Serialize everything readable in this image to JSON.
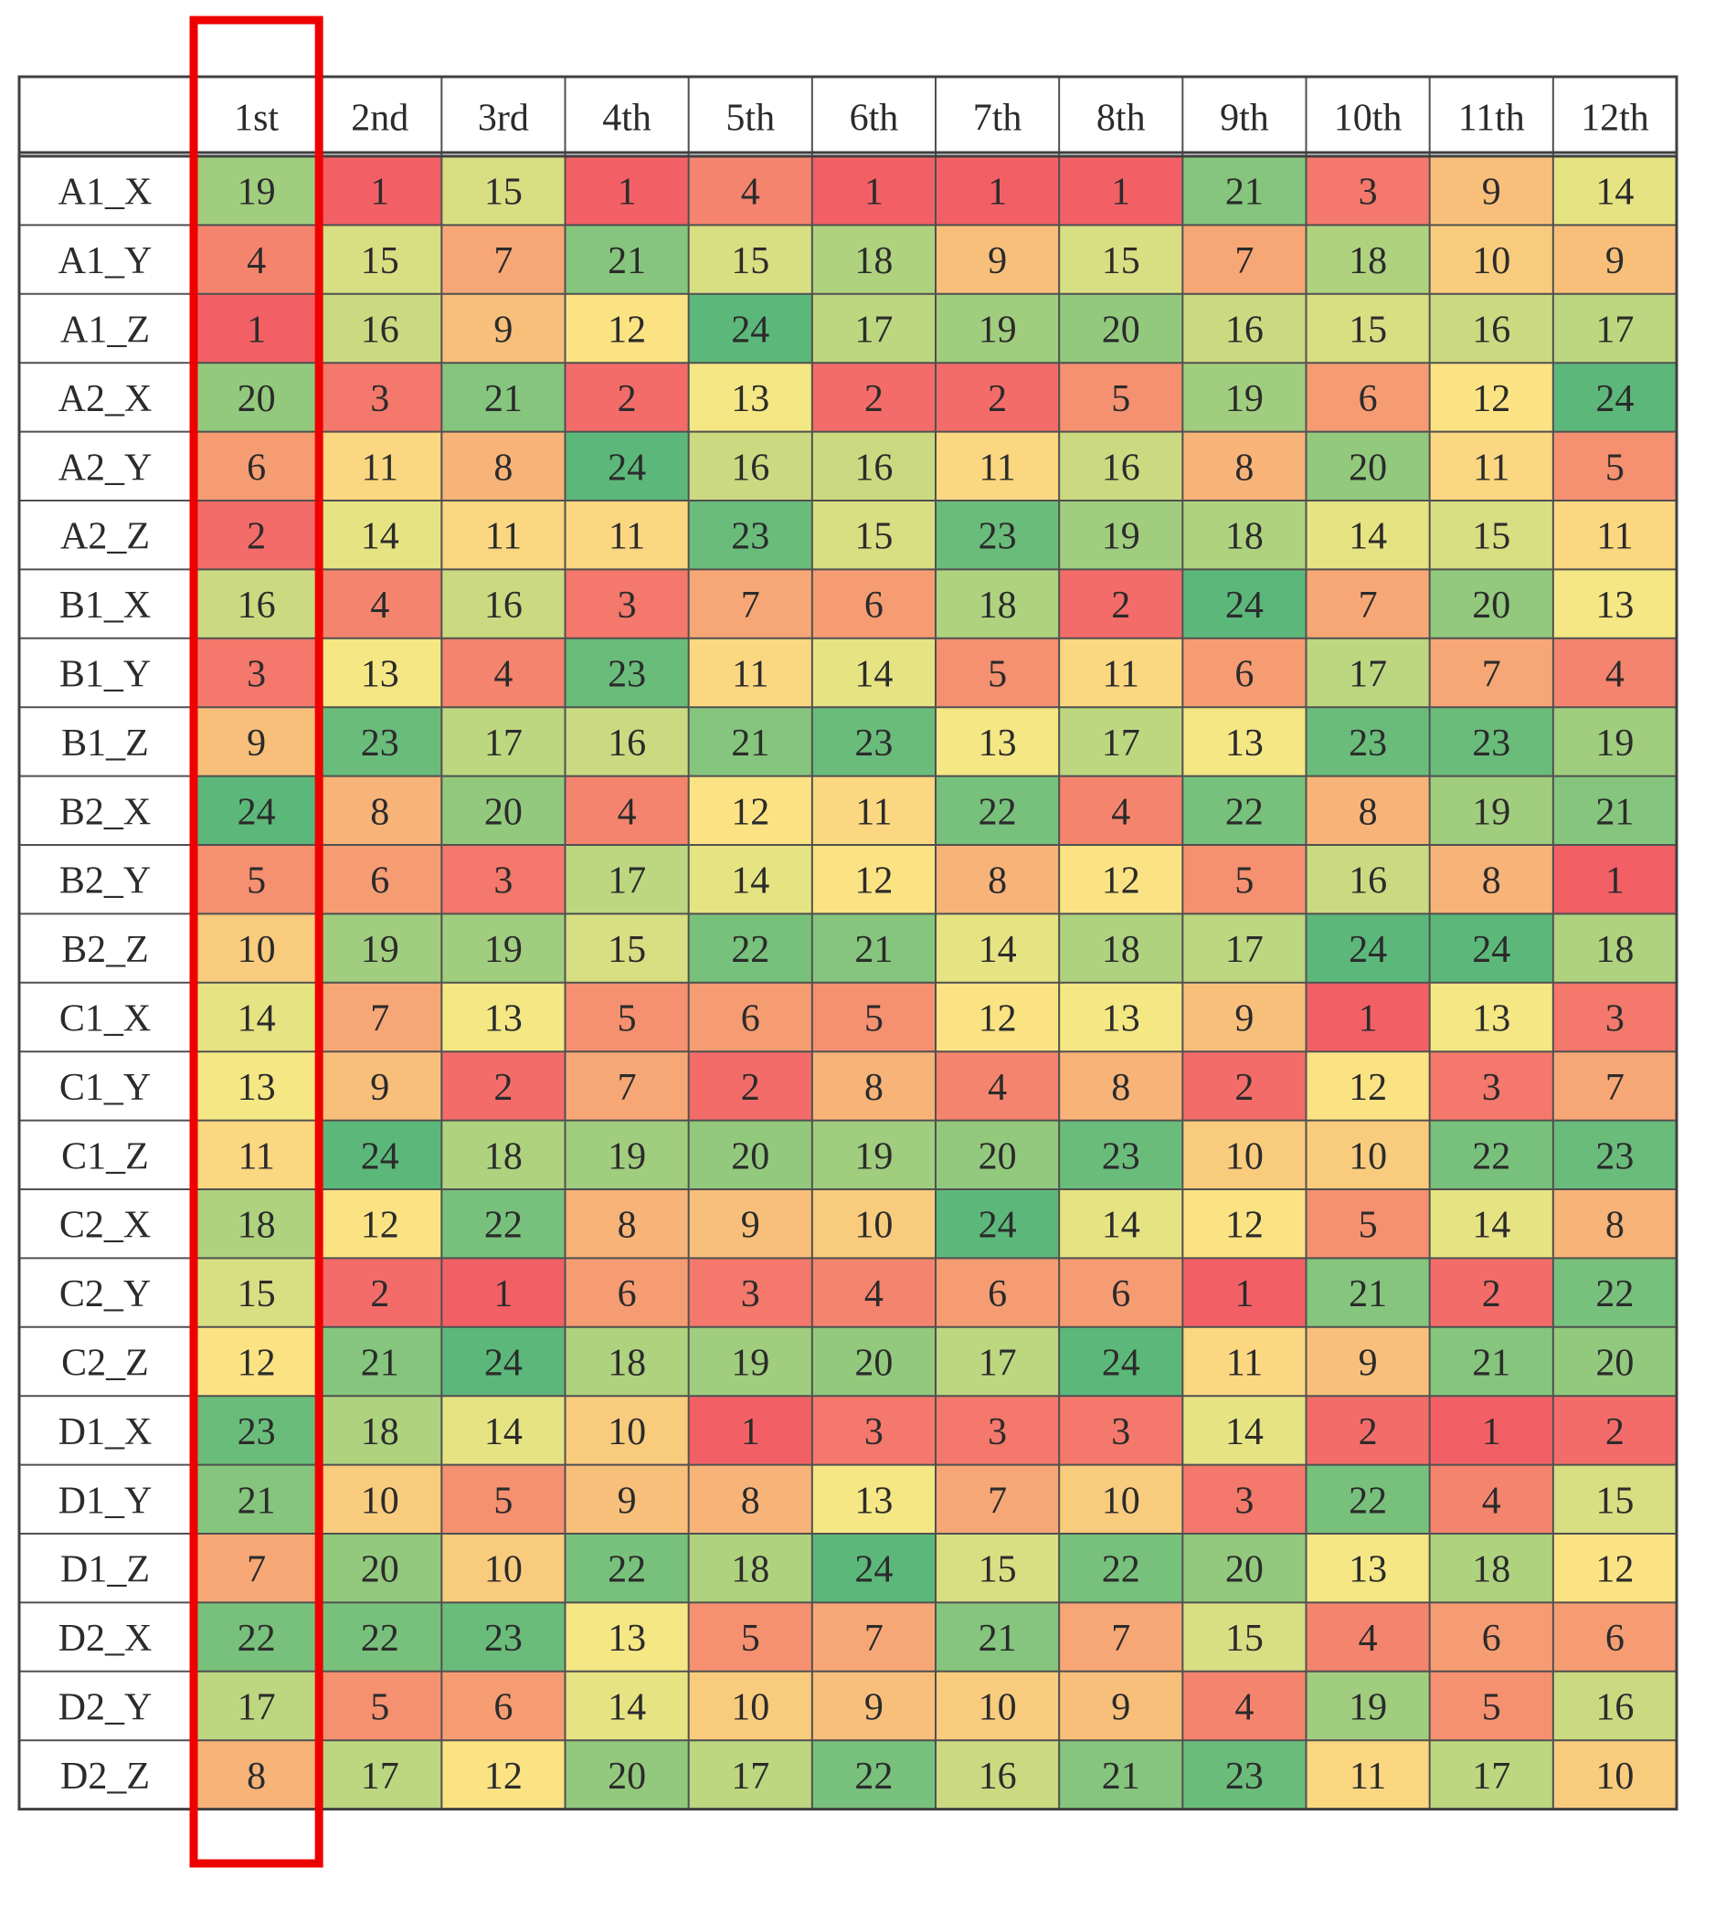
{
  "chart_data": {
    "type": "heatmap",
    "title": "",
    "xlabel": "",
    "ylabel": "",
    "columns": [
      "1st",
      "2nd",
      "3rd",
      "4th",
      "5th",
      "6th",
      "7th",
      "8th",
      "9th",
      "10th",
      "11th",
      "12th"
    ],
    "rows": [
      "A1_X",
      "A1_Y",
      "A1_Z",
      "A2_X",
      "A2_Y",
      "A2_Z",
      "B1_X",
      "B1_Y",
      "B1_Z",
      "B2_X",
      "B2_Y",
      "B2_Z",
      "C1_X",
      "C1_Y",
      "C1_Z",
      "C2_X",
      "C2_Y",
      "C2_Z",
      "D1_X",
      "D1_Y",
      "D1_Z",
      "D2_X",
      "D2_Y",
      "D2_Z"
    ],
    "values": [
      [
        19,
        1,
        15,
        1,
        4,
        1,
        1,
        1,
        21,
        3,
        9,
        14
      ],
      [
        4,
        15,
        7,
        21,
        15,
        18,
        9,
        15,
        7,
        18,
        10,
        9
      ],
      [
        1,
        16,
        9,
        12,
        24,
        17,
        19,
        20,
        16,
        15,
        16,
        17
      ],
      [
        20,
        3,
        21,
        2,
        13,
        2,
        2,
        5,
        19,
        6,
        12,
        24
      ],
      [
        6,
        11,
        8,
        24,
        16,
        16,
        11,
        16,
        8,
        20,
        11,
        5
      ],
      [
        2,
        14,
        11,
        11,
        23,
        15,
        23,
        19,
        18,
        14,
        15,
        11
      ],
      [
        16,
        4,
        16,
        3,
        7,
        6,
        18,
        2,
        24,
        7,
        20,
        13
      ],
      [
        3,
        13,
        4,
        23,
        11,
        14,
        5,
        11,
        6,
        17,
        7,
        4
      ],
      [
        9,
        23,
        17,
        16,
        21,
        23,
        13,
        17,
        13,
        23,
        23,
        19
      ],
      [
        24,
        8,
        20,
        4,
        12,
        11,
        22,
        4,
        22,
        8,
        19,
        21
      ],
      [
        5,
        6,
        3,
        17,
        14,
        12,
        8,
        12,
        5,
        16,
        8,
        1
      ],
      [
        10,
        19,
        19,
        15,
        22,
        21,
        14,
        18,
        17,
        24,
        24,
        18
      ],
      [
        14,
        7,
        13,
        5,
        6,
        5,
        12,
        13,
        9,
        1,
        13,
        3
      ],
      [
        13,
        9,
        2,
        7,
        2,
        8,
        4,
        8,
        2,
        12,
        3,
        7
      ],
      [
        11,
        24,
        18,
        19,
        20,
        19,
        20,
        23,
        10,
        10,
        22,
        23
      ],
      [
        18,
        12,
        22,
        8,
        9,
        10,
        24,
        14,
        12,
        5,
        14,
        8
      ],
      [
        15,
        2,
        1,
        6,
        3,
        4,
        6,
        6,
        1,
        21,
        2,
        22
      ],
      [
        12,
        21,
        24,
        18,
        19,
        20,
        17,
        24,
        11,
        9,
        21,
        20
      ],
      [
        23,
        18,
        14,
        10,
        1,
        3,
        3,
        3,
        14,
        2,
        1,
        2
      ],
      [
        21,
        10,
        5,
        9,
        8,
        13,
        7,
        10,
        3,
        22,
        4,
        15
      ],
      [
        7,
        20,
        10,
        22,
        18,
        24,
        15,
        22,
        20,
        13,
        18,
        12
      ],
      [
        22,
        22,
        23,
        13,
        5,
        7,
        21,
        7,
        15,
        4,
        6,
        6
      ],
      [
        17,
        5,
        6,
        14,
        10,
        9,
        10,
        9,
        4,
        19,
        5,
        16
      ],
      [
        8,
        17,
        12,
        20,
        17,
        22,
        16,
        21,
        23,
        11,
        17,
        10
      ]
    ],
    "color_scale": {
      "min": 1,
      "max": 24,
      "stops": [
        "#f26066",
        "#fbe984",
        "#5cb87a"
      ]
    },
    "highlighted_column": "1st",
    "highlight_color": "#ee0000",
    "legend": "none",
    "grid": true
  }
}
